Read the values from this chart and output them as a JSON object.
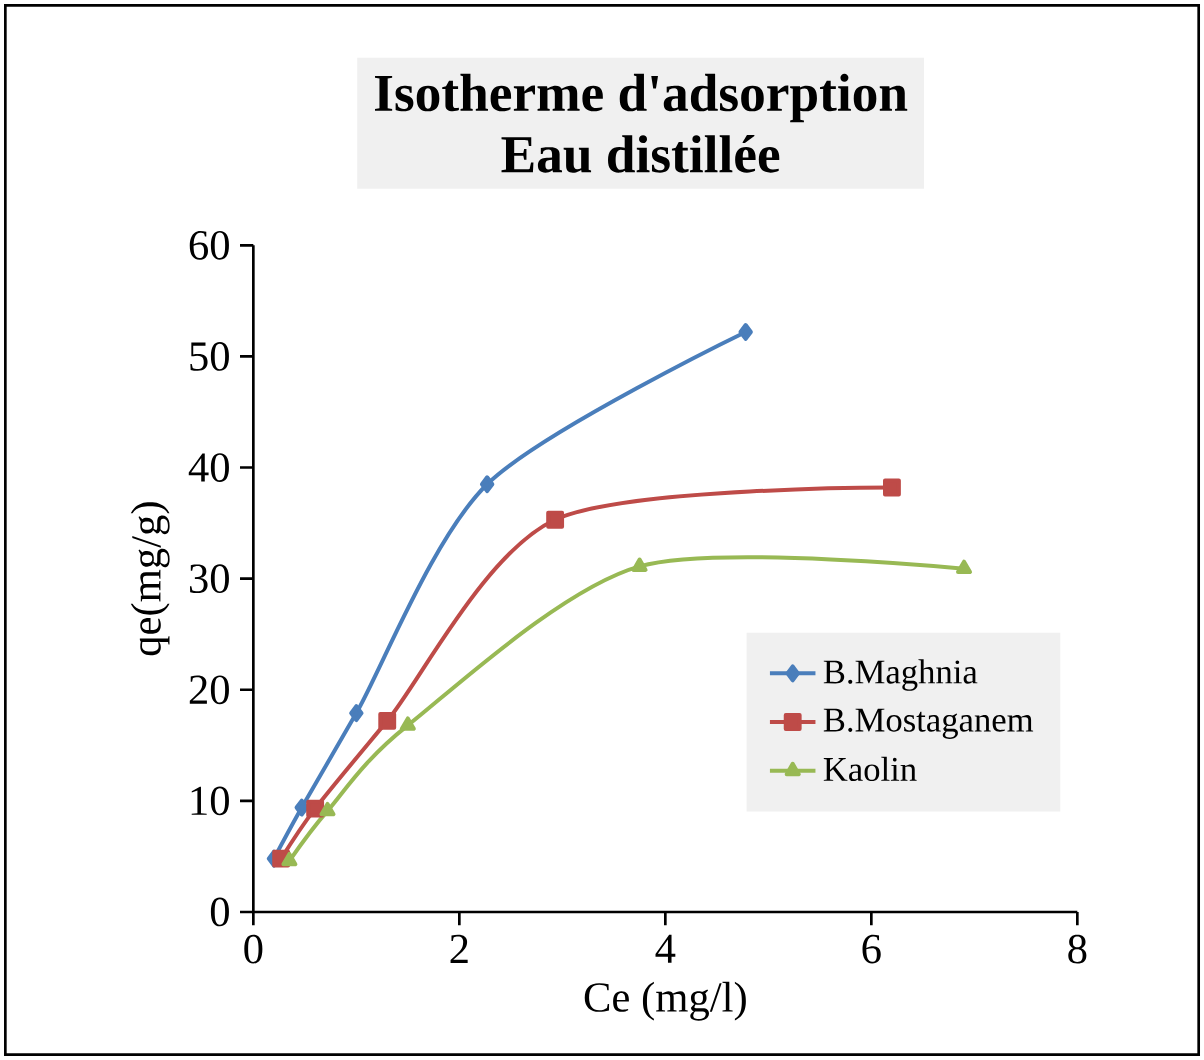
{
  "chart_data": {
    "type": "line",
    "title": "Isotherme d'adsorption",
    "subtitle": "Eau distillée",
    "xlabel": "Ce (mg/l)",
    "ylabel": "qe(mg/g)",
    "xlim": [
      0,
      8
    ],
    "xticks": [
      0,
      2,
      4,
      6,
      8
    ],
    "ylim": [
      0,
      60
    ],
    "yticks": [
      0,
      10,
      20,
      30,
      40,
      50,
      60
    ],
    "grid": false,
    "legend": "bottom right",
    "line_style": "solid",
    "series": [
      {
        "name": "B.Maghnia",
        "color": "#4a7ebb",
        "marker": "diamond",
        "x": [
          0.2,
          0.47,
          1.0,
          2.27,
          4.78
        ],
        "values": [
          4.8,
          9.4,
          17.9,
          38.5,
          52.2
        ]
      },
      {
        "name": "B.Mostaganem",
        "color": "#be4b48",
        "marker": "square",
        "x": [
          0.27,
          0.6,
          1.3,
          2.93,
          6.2
        ],
        "values": [
          4.8,
          9.3,
          17.2,
          35.3,
          38.2
        ]
      },
      {
        "name": "Kaolin",
        "color": "#98b954",
        "marker": "triangle",
        "x": [
          0.35,
          0.72,
          1.5,
          3.75,
          6.9
        ],
        "values": [
          4.6,
          9.1,
          16.8,
          31.1,
          30.9
        ]
      }
    ]
  }
}
